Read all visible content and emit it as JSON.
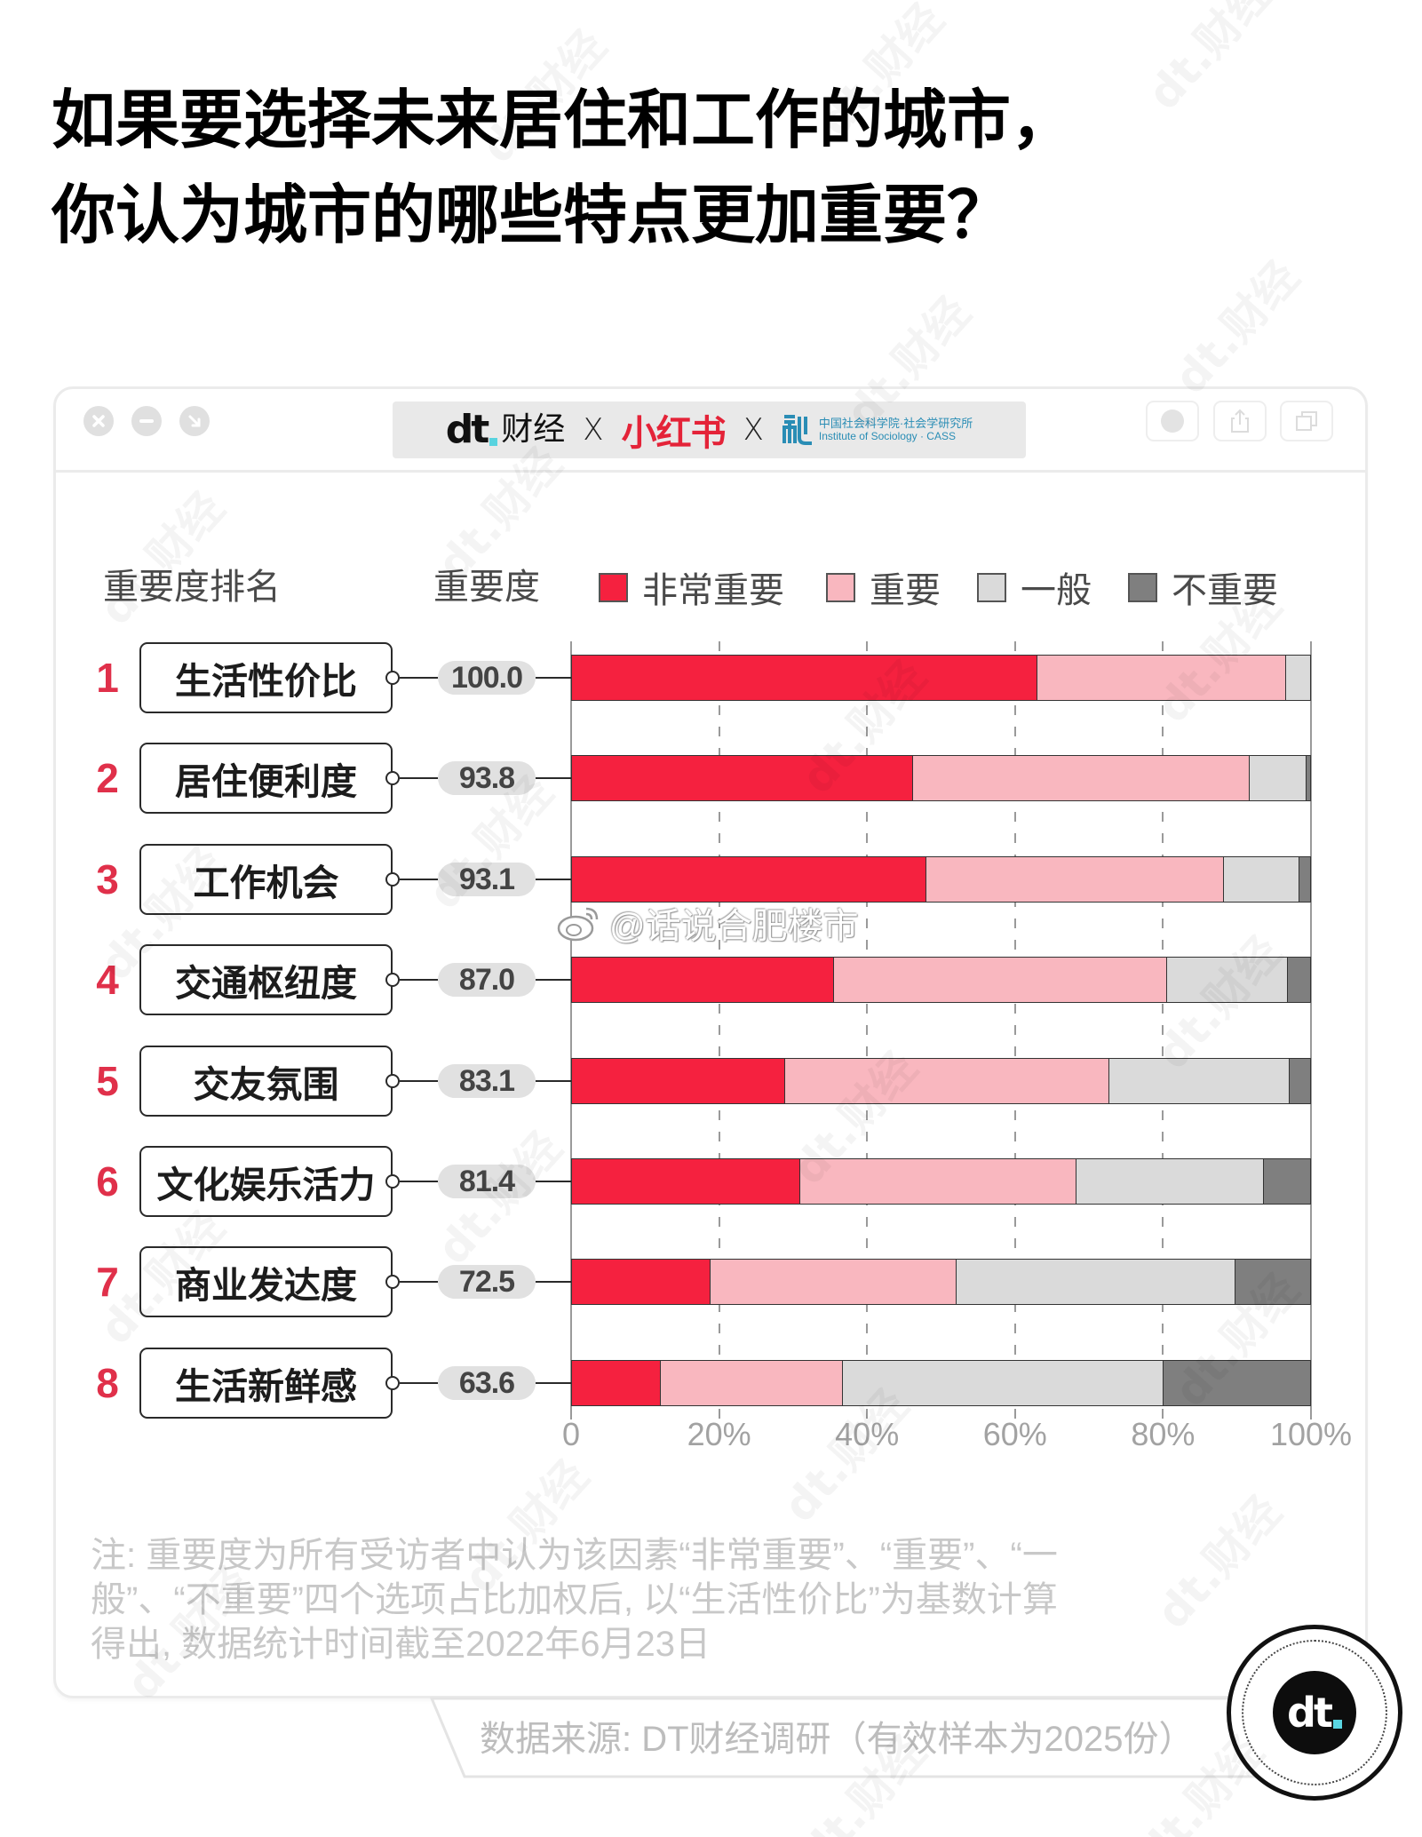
{
  "title": {
    "line1": "如果要选择未来居住和工作的城市，",
    "line2": "你认为城市的哪些特点更加重要？"
  },
  "window": {
    "controls": [
      "close",
      "minimize",
      "expand"
    ],
    "partners": {
      "dt_mark": "dt",
      "dt_name": "财经",
      "sep1": "X",
      "xiaohongshu": "小红书",
      "sep2": "X",
      "cass_cn": "中国社会科学院·社会学研究所",
      "cass_en": "Institute of Sociology · CASS"
    },
    "actions": [
      "record",
      "share",
      "copy"
    ]
  },
  "chart": {
    "rank_header": "重要度排名",
    "score_header": "重要度",
    "legend": [
      {
        "key": "very",
        "label": "非常重要",
        "color": "#F5213F"
      },
      {
        "key": "important",
        "label": "重要",
        "color": "#F9B7BF"
      },
      {
        "key": "neutral",
        "label": "一般",
        "color": "#DADADA"
      },
      {
        "key": "not",
        "label": "不重要",
        "color": "#7F7F7F"
      }
    ],
    "rows": [
      {
        "rank": "1",
        "label": "生活性价比",
        "score": "100.0"
      },
      {
        "rank": "2",
        "label": "居住便利度",
        "score": "93.8"
      },
      {
        "rank": "3",
        "label": "工作机会",
        "score": "93.1"
      },
      {
        "rank": "4",
        "label": "交通枢纽度",
        "score": "87.0"
      },
      {
        "rank": "5",
        "label": "交友氛围",
        "score": "83.1"
      },
      {
        "rank": "6",
        "label": "文化娱乐活力",
        "score": "81.4"
      },
      {
        "rank": "7",
        "label": "商业发达度",
        "score": "72.5"
      },
      {
        "rank": "8",
        "label": "生活新鲜感",
        "score": "63.6"
      }
    ],
    "axis": {
      "ticks": [
        {
          "label": "0",
          "pct": 0
        },
        {
          "label": "20%",
          "pct": 20
        },
        {
          "label": "40%",
          "pct": 40
        },
        {
          "label": "60%",
          "pct": 60
        },
        {
          "label": "80%",
          "pct": 80
        },
        {
          "label": "100%",
          "pct": 100
        }
      ]
    }
  },
  "footnote": {
    "lines": [
      "注: 重要度为所有受访者中认为该因素“非常重要”、“重要”、“一",
      "般”、“不重要”四个选项占比加权后, 以“生活性价比”为基数计算",
      "得出, 数据统计时间截至2022年6月23日"
    ]
  },
  "source": "数据来源: DT财经调研（有效样本为2025份）",
  "badge": {
    "mark": "dt"
  },
  "watermarks": {
    "brand": "dt.财经",
    "weibo": "@话说合肥楼市"
  },
  "chart_data": {
    "type": "bar",
    "orientation": "horizontal",
    "stacked": true,
    "title": "如果要选择未来居住和工作的城市，你认为城市的哪些特点更加重要？",
    "categories": [
      "生活性价比",
      "居住便利度",
      "工作机会",
      "交通枢纽度",
      "交友氛围",
      "文化娱乐活力",
      "商业发达度",
      "生活新鲜感"
    ],
    "ranks": [
      1,
      2,
      3,
      4,
      5,
      6,
      7,
      8
    ],
    "importance_scores": [
      100.0,
      93.8,
      93.1,
      87.0,
      83.1,
      81.4,
      72.5,
      63.6
    ],
    "series": [
      {
        "key": "very",
        "name": "非常重要",
        "color": "#F5213F",
        "values": [
          63.1,
          46.2,
          48.0,
          35.5,
          28.9,
          30.9,
          18.8,
          12.0
        ]
      },
      {
        "key": "important",
        "name": "重要",
        "color": "#F9B7BF",
        "values": [
          33.7,
          45.6,
          40.3,
          45.1,
          43.9,
          37.4,
          33.3,
          24.7
        ]
      },
      {
        "key": "neutral",
        "name": "一般",
        "color": "#DADADA",
        "values": [
          3.2,
          7.7,
          10.3,
          16.4,
          24.4,
          25.4,
          37.8,
          43.4
        ]
      },
      {
        "key": "not",
        "name": "不重要",
        "color": "#7F7F7F",
        "values": [
          0.0,
          0.5,
          1.4,
          3.0,
          2.8,
          6.3,
          10.1,
          19.9
        ]
      }
    ],
    "xlabel": "",
    "ylabel": "",
    "xlim": [
      0,
      100
    ],
    "xticks": [
      "0",
      "20%",
      "40%",
      "60%",
      "80%",
      "100%"
    ],
    "grid": "dashed vertical lines at 20% intervals",
    "legend_position": "top",
    "left_columns": [
      "重要度排名",
      "重要度"
    ],
    "note": "注: 重要度为所有受访者中认为该因素“非常重要”、“重要”、“一般”、“不重要”四个选项占比加权后, 以“生活性价比”为基数计算得出, 数据统计时间截至2022年6月23日",
    "source": "数据来源: DT财经调研（有效样本为2025份）"
  }
}
